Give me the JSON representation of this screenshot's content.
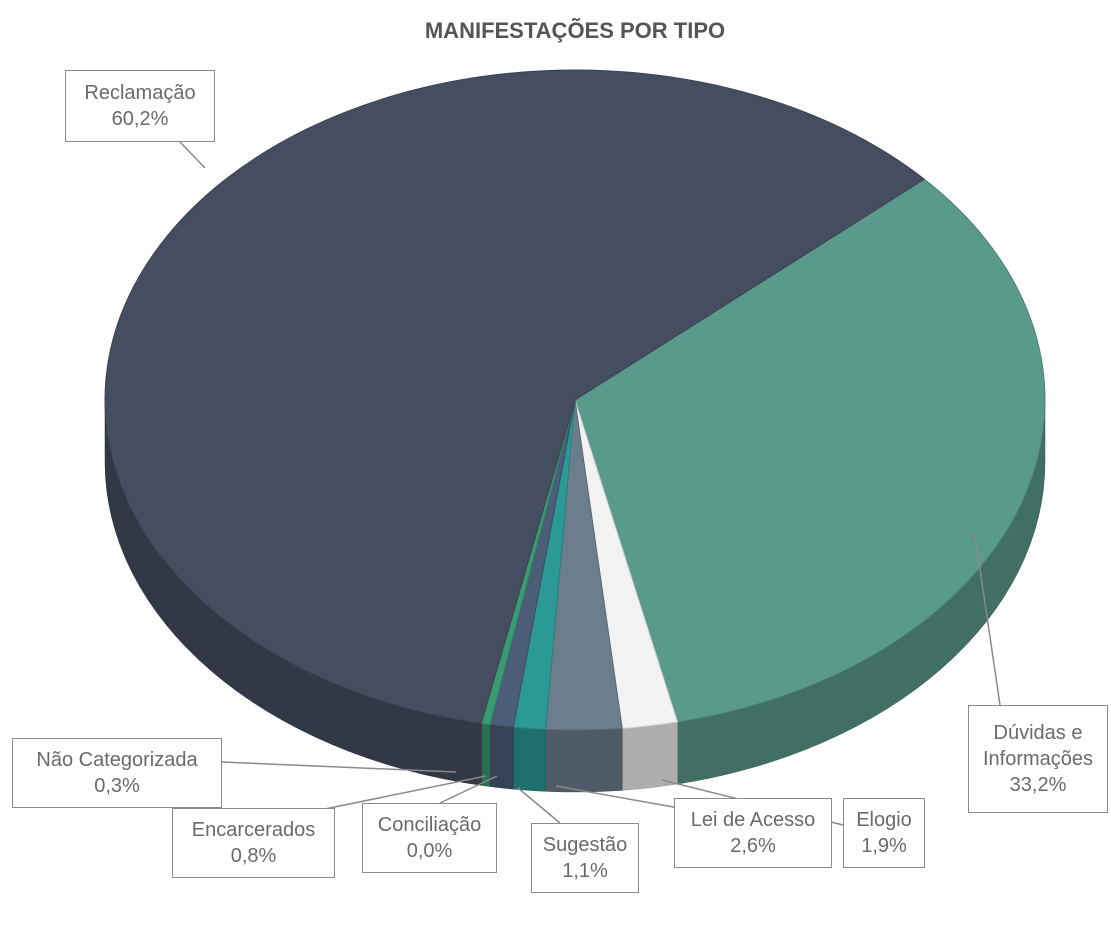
{
  "chart_data": {
    "type": "pie3d",
    "title": "MANIFESTAÇÕES POR TIPO",
    "categories": [
      "Dúvidas e Informações",
      "Elogio",
      "Lei de Acesso",
      "Sugestão",
      "Conciliação",
      "Encarcerados",
      "Não Categorizada",
      "Reclamação"
    ],
    "values": [
      33.2,
      1.9,
      2.6,
      1.1,
      0.0,
      0.8,
      0.3,
      60.2
    ],
    "value_labels": [
      "33,2%",
      "1,9%",
      "2,6%",
      "1,1%",
      "0,0%",
      "0,8%",
      "0,3%",
      "60,2%"
    ],
    "colors": [
      "#5a9a8a",
      "#f2f2f2",
      "#6c7d8c",
      "#2b9a97",
      "#2f3440",
      "#4b5d78",
      "#3a9a72",
      "#454e60"
    ]
  }
}
